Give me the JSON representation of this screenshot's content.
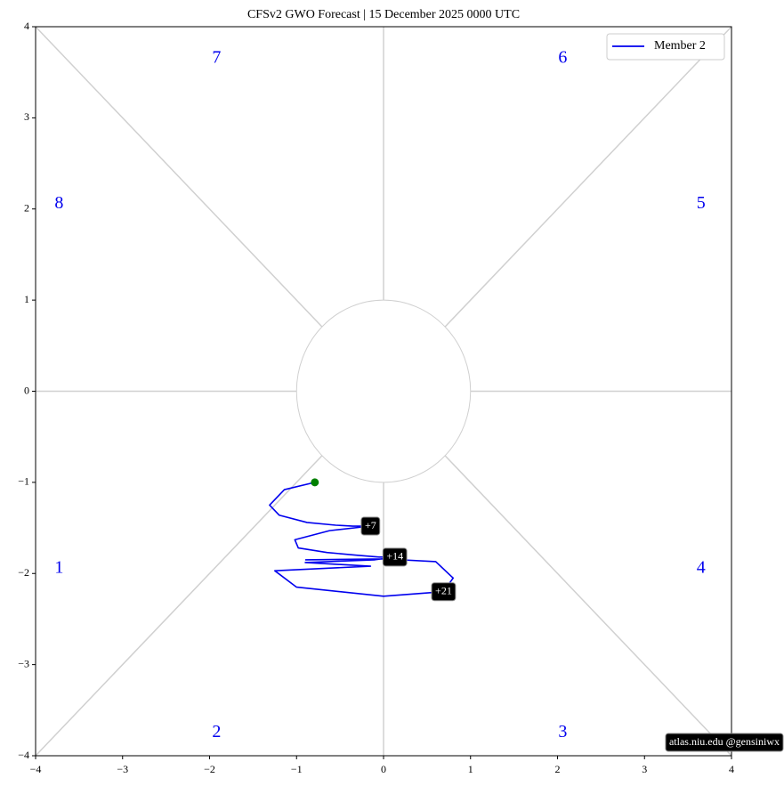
{
  "chart_data": {
    "type": "line",
    "title": "CFSv2 GWO Forecast  |  15  December  2025 0000 UTC",
    "x": [
      -0.79,
      -1.14,
      -1.31,
      -1.2,
      -0.88,
      -0.55,
      -0.35,
      -0.15,
      -0.62,
      -1.02,
      -0.98,
      -0.65,
      -0.3,
      -0.05,
      0.13,
      -0.1,
      -0.9,
      -0.15,
      -1.25,
      -1.0,
      0.0,
      0.69,
      0.8,
      0.6,
      0.0,
      -0.9
    ],
    "series": [
      {
        "name": "Member 2",
        "color": "#0000ee",
        "values": [
          -1.0,
          -1.08,
          -1.25,
          -1.36,
          -1.44,
          -1.47,
          -1.48,
          -1.48,
          -1.53,
          -1.63,
          -1.72,
          -1.77,
          -1.8,
          -1.82,
          -1.82,
          -1.85,
          -1.88,
          -1.92,
          -1.97,
          -2.15,
          -2.25,
          -2.2,
          -2.05,
          -1.87,
          -1.84,
          -1.85
        ]
      }
    ],
    "start_color": "green",
    "annotations": [
      {
        "label": "+7",
        "x": -0.15,
        "y": -1.48
      },
      {
        "label": "+14",
        "x": 0.13,
        "y": -1.82
      },
      {
        "label": "+21",
        "x": 0.69,
        "y": -2.2
      }
    ],
    "phase_labels": [
      "1",
      "2",
      "3",
      "4",
      "5",
      "6",
      "7",
      "8"
    ],
    "watermark": "atlas.niu.edu  @gensiniwx",
    "xlim": [
      -4,
      4
    ],
    "ylim": [
      -4,
      4
    ],
    "xticks": [
      {
        "value": -4,
        "label": "−4"
      },
      {
        "value": -3,
        "label": "−3"
      },
      {
        "value": -2,
        "label": "−2"
      },
      {
        "value": -1,
        "label": "−1"
      },
      0,
      1,
      2,
      3,
      4
    ],
    "yticks": [
      {
        "value": -4,
        "label": "−4"
      },
      {
        "value": -3,
        "label": "−3"
      },
      {
        "value": -2,
        "label": "−2"
      },
      {
        "value": -1,
        "label": "−1"
      },
      0,
      1,
      2,
      3,
      4
    ],
    "legend": "upper right"
  }
}
